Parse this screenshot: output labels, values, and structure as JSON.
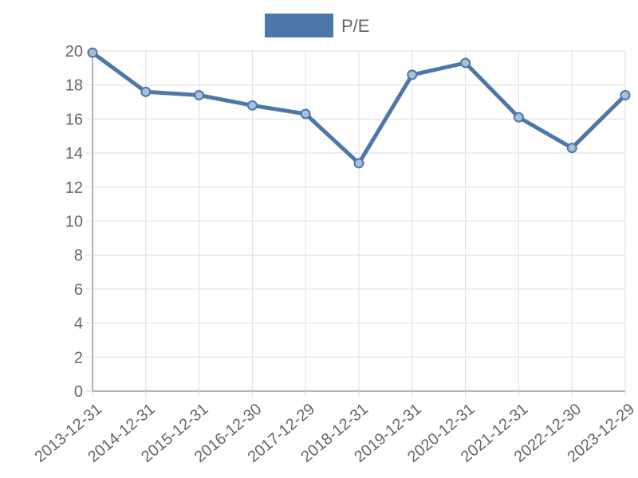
{
  "chart_data": {
    "type": "line",
    "x": [
      "2013-12-31",
      "2014-12-31",
      "2015-12-31",
      "2016-12-30",
      "2017-12-29",
      "2018-12-31",
      "2019-12-31",
      "2020-12-31",
      "2021-12-31",
      "2022-12-30",
      "2023-12-29"
    ],
    "series": [
      {
        "name": "P/E",
        "values": [
          19.9,
          17.6,
          17.4,
          16.8,
          16.3,
          13.4,
          18.6,
          19.3,
          16.1,
          14.3,
          17.4
        ]
      }
    ],
    "y_ticks": [
      "0",
      "2",
      "4",
      "6",
      "8",
      "10",
      "12",
      "14",
      "16",
      "18",
      "20"
    ],
    "ylim": [
      0,
      20
    ],
    "grid": true,
    "legend": "top-center",
    "colors": {
      "line": "#4c77a8",
      "point_fill": "#a9bfd9",
      "grid": "#dddddd",
      "axis": "#999999",
      "text": "#666666"
    }
  }
}
